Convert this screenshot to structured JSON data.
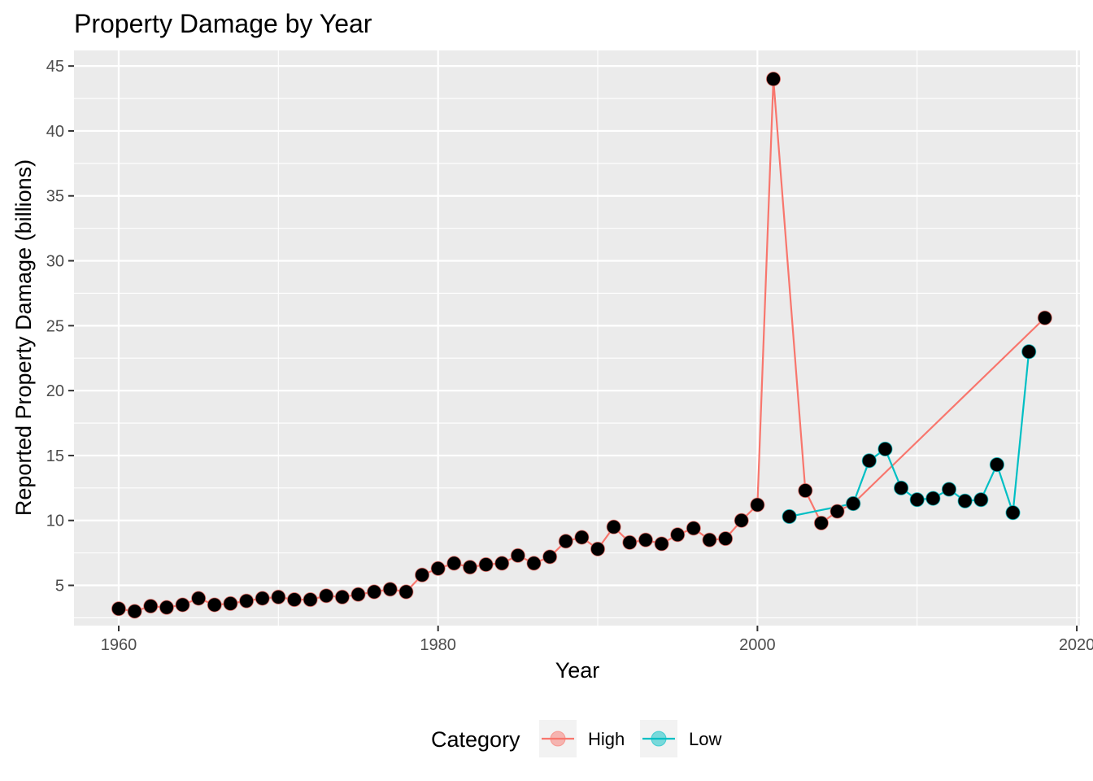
{
  "chart_data": {
    "type": "line",
    "title": "Property Damage by Year",
    "xlabel": "Year",
    "ylabel": "Reported Property Damage (billions)",
    "xlim": [
      1957.2,
      2020.2
    ],
    "ylim": [
      1.9,
      46.2
    ],
    "x_ticks": [
      1960,
      1980,
      2000,
      2020
    ],
    "y_ticks": [
      5,
      10,
      15,
      20,
      25,
      30,
      35,
      40,
      45
    ],
    "grid": true,
    "legend": {
      "title": "Category",
      "position": "bottom",
      "entries": [
        "High",
        "Low"
      ]
    },
    "colors": {
      "High": "#F8766D",
      "Low": "#00BFC4",
      "point_fill": "#000000",
      "panel_bg": "#EBEBEB",
      "grid": "#FFFFFF"
    },
    "series": [
      {
        "name": "High",
        "color": "#F8766D",
        "x": [
          1960,
          1961,
          1962,
          1963,
          1964,
          1965,
          1966,
          1967,
          1968,
          1969,
          1970,
          1971,
          1972,
          1973,
          1974,
          1975,
          1976,
          1977,
          1978,
          1979,
          1980,
          1981,
          1982,
          1983,
          1984,
          1985,
          1986,
          1987,
          1988,
          1989,
          1990,
          1991,
          1992,
          1993,
          1994,
          1995,
          1996,
          1997,
          1998,
          1999,
          2000,
          2001,
          2003,
          2004,
          2005,
          2006,
          2018
        ],
        "y": [
          3.2,
          3.0,
          3.4,
          3.3,
          3.5,
          4.0,
          3.5,
          3.6,
          3.8,
          4.0,
          4.1,
          3.9,
          3.9,
          4.2,
          4.1,
          4.3,
          4.5,
          4.7,
          4.5,
          5.8,
          6.3,
          6.7,
          6.4,
          6.6,
          6.7,
          7.3,
          6.7,
          7.2,
          8.4,
          8.7,
          7.8,
          9.5,
          8.3,
          8.5,
          8.2,
          8.9,
          9.4,
          8.5,
          8.6,
          10.0,
          11.2,
          44.0,
          12.3,
          9.8,
          10.7,
          11.3,
          25.6
        ]
      },
      {
        "name": "Low",
        "color": "#00BFC4",
        "x": [
          2002,
          2006,
          2007,
          2008,
          2009,
          2010,
          2011,
          2012,
          2013,
          2014,
          2015,
          2016,
          2017
        ],
        "y": [
          10.3,
          11.3,
          14.6,
          15.5,
          12.5,
          11.6,
          11.7,
          12.4,
          11.5,
          11.6,
          14.3,
          10.6,
          23.0
        ]
      }
    ]
  }
}
